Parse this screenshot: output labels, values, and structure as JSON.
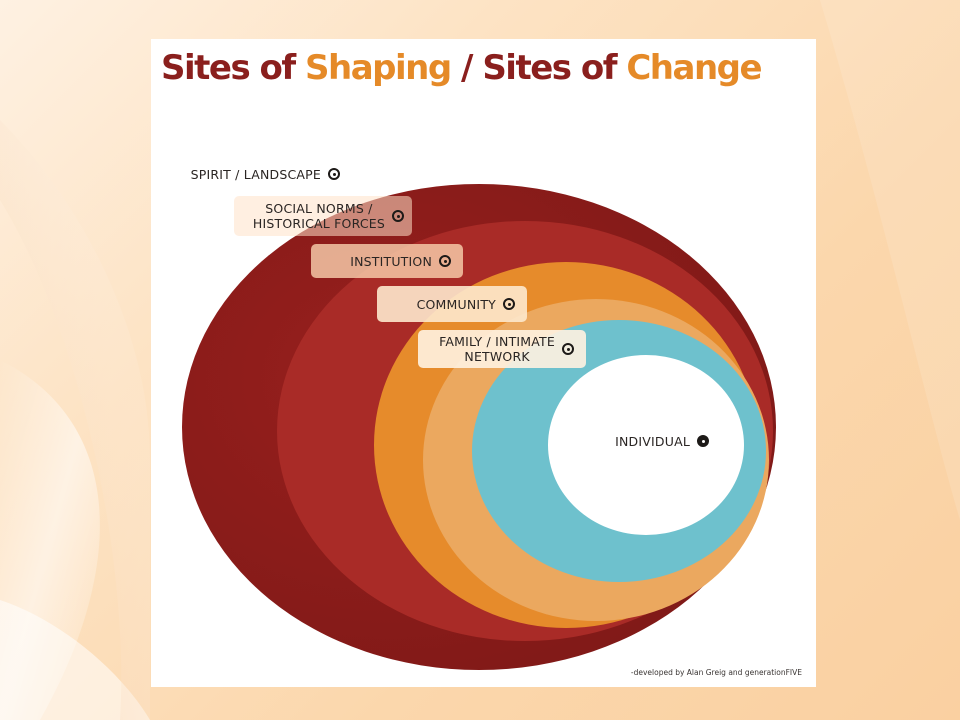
{
  "title": {
    "part1": "Sites of",
    "part2": "Shaping",
    "separator": "/",
    "part3": "Sites of",
    "part4": "Change",
    "color_dark": "#8a1f1d",
    "color_orange": "#e58a28"
  },
  "levels": [
    {
      "label": "SPIRIT / LANDSCAPE",
      "ring_color": "#8b1e1c"
    },
    {
      "label": "SOCIAL NORMS /\nHISTORICAL FORCES",
      "ring_color": "#a92b27"
    },
    {
      "label": "INSTITUTION",
      "ring_color": "#e68b2b"
    },
    {
      "label": "COMMUNITY",
      "ring_color": "#eea860"
    },
    {
      "label": "FAMILY / INTIMATE\nNETWORK",
      "ring_color": "#6ec1cd"
    },
    {
      "label": "INDIVIDUAL",
      "ring_color": "#ffffff"
    }
  ],
  "credit": "-developed by Alan Greig and generationFIVE",
  "icons": {
    "level_marker": "target-dot-icon"
  }
}
